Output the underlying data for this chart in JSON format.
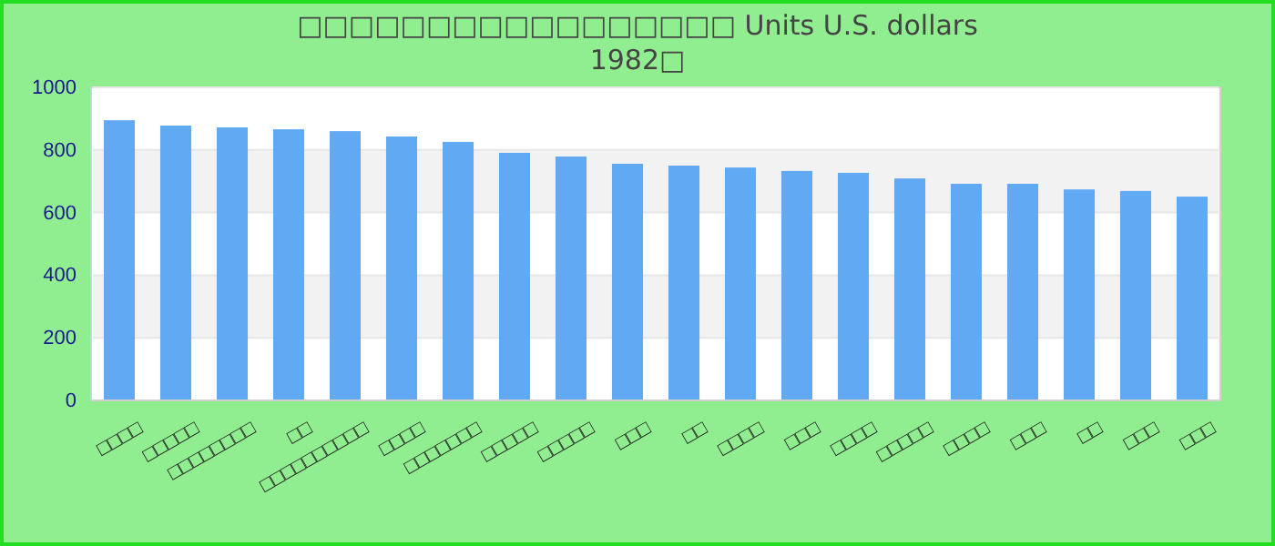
{
  "chart_data": {
    "type": "bar",
    "title": "□□□□□□□□□□□□□□□□□ Units U.S. dollars",
    "subtitle": "1982□",
    "categories": [
      "□□□□",
      "□□□□□",
      "□□□□□□□□",
      "□□",
      "□□□□□□□□□□",
      "□□□□",
      "□□□□□□□",
      "□□□□□",
      "□□□□□",
      "□□□",
      "□□",
      "□□□□",
      "□□□",
      "□□□□",
      "□□□□□",
      "□□□□",
      "□□□",
      "□□",
      "□□□",
      "□□□"
    ],
    "values": [
      895,
      878,
      872,
      866,
      860,
      843,
      826,
      791,
      779,
      756,
      750,
      744,
      733,
      727,
      709,
      692,
      692,
      674,
      669,
      651
    ],
    "color": "#62a9f3",
    "ylim": [
      0,
      1000
    ],
    "yticks": [
      0,
      200,
      400,
      600,
      800,
      1000
    ],
    "grid": "y"
  }
}
